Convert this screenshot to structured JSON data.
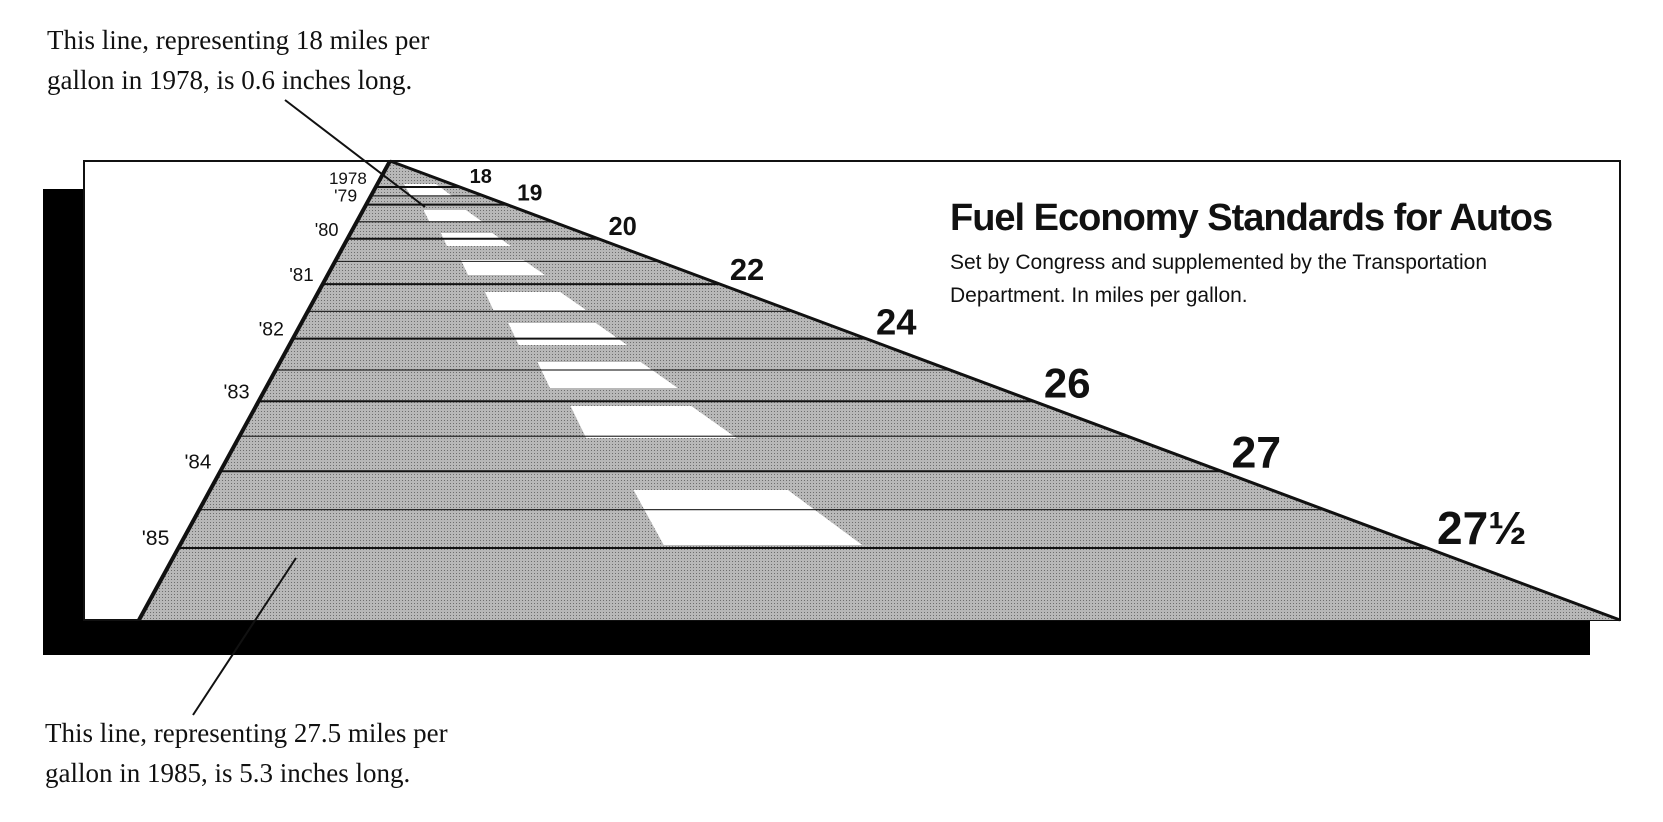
{
  "chart_data": {
    "type": "line",
    "title": "Fuel Economy Standards for Autos",
    "subtitle": "Set by Congress and supplemented by the Transportation Department. In miles per gallon.",
    "xlabel": "",
    "ylabel": "",
    "unit": "miles per gallon",
    "years": [
      "1978",
      "'79",
      "'80",
      "'81",
      "'82",
      "'83",
      "'84",
      "'85"
    ],
    "values": [
      18,
      19,
      20,
      22,
      24,
      26,
      27,
      27.5
    ],
    "value_labels": [
      "18",
      "19",
      "20",
      "22",
      "24",
      "26",
      "27",
      "27½"
    ],
    "ylim": [
      18,
      27.5
    ],
    "grid": false,
    "annotations": [
      "This line, representing 18 miles per gallon in 1978, is 0.6 inches long.",
      "This line, representing 27.5 miles per gallon in 1985, is 5.3 inches long."
    ]
  },
  "annotations": {
    "top": {
      "line1": "This line, representing 18 miles per",
      "line2": "gallon in 1978, is 0.6 inches long."
    },
    "bottom": {
      "line1": "This line, representing 27.5 miles per",
      "line2": "gallon in 1985, is 5.3 inches long."
    }
  },
  "colors": {
    "ink": "#111111",
    "road": "#a9a9a9",
    "shadow": "#1a1a1a",
    "lane_marker": "#ffffff"
  }
}
